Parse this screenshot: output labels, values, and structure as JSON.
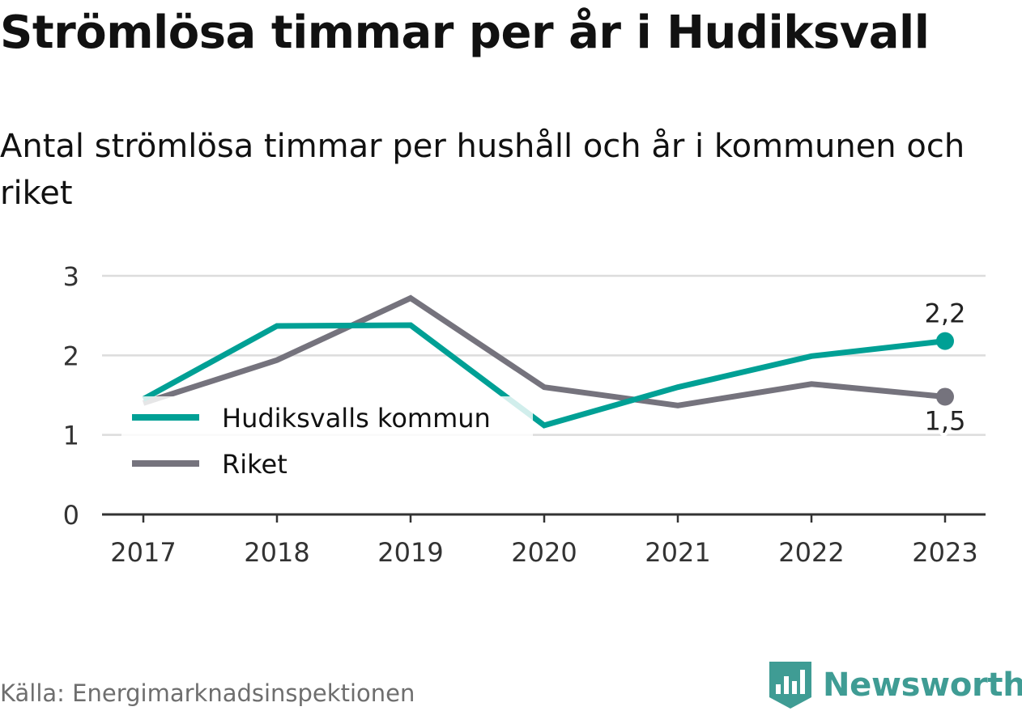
{
  "chart_data": {
    "type": "line",
    "title": "Strömlösa timmar per år i Hudiksvall",
    "subtitle": "Antal strömlösa timmar per hushåll och år i kommunen och riket",
    "x": [
      "2017",
      "2018",
      "2019",
      "2020",
      "2021",
      "2022",
      "2023"
    ],
    "series": [
      {
        "name": "Hudiksvalls kommun",
        "color": "#00a095",
        "values": [
          1.45,
          2.37,
          2.38,
          1.12,
          1.6,
          1.99,
          2.18
        ],
        "end_label": "2,2"
      },
      {
        "name": "Riket",
        "color": "#75737d",
        "values": [
          1.4,
          1.94,
          2.72,
          1.6,
          1.37,
          1.64,
          1.48
        ],
        "end_label": "1,5"
      }
    ],
    "y_ticks": [
      "0",
      "1",
      "2",
      "3"
    ],
    "ylim": [
      0,
      3
    ],
    "grid": true,
    "legend_position": "inside-left"
  },
  "source": "Källa: Energimarknadsinspektionen",
  "brand": {
    "name": "Newsworthy",
    "icon": "newsworthy-bar-chart-icon",
    "color": "#3f9c94"
  }
}
